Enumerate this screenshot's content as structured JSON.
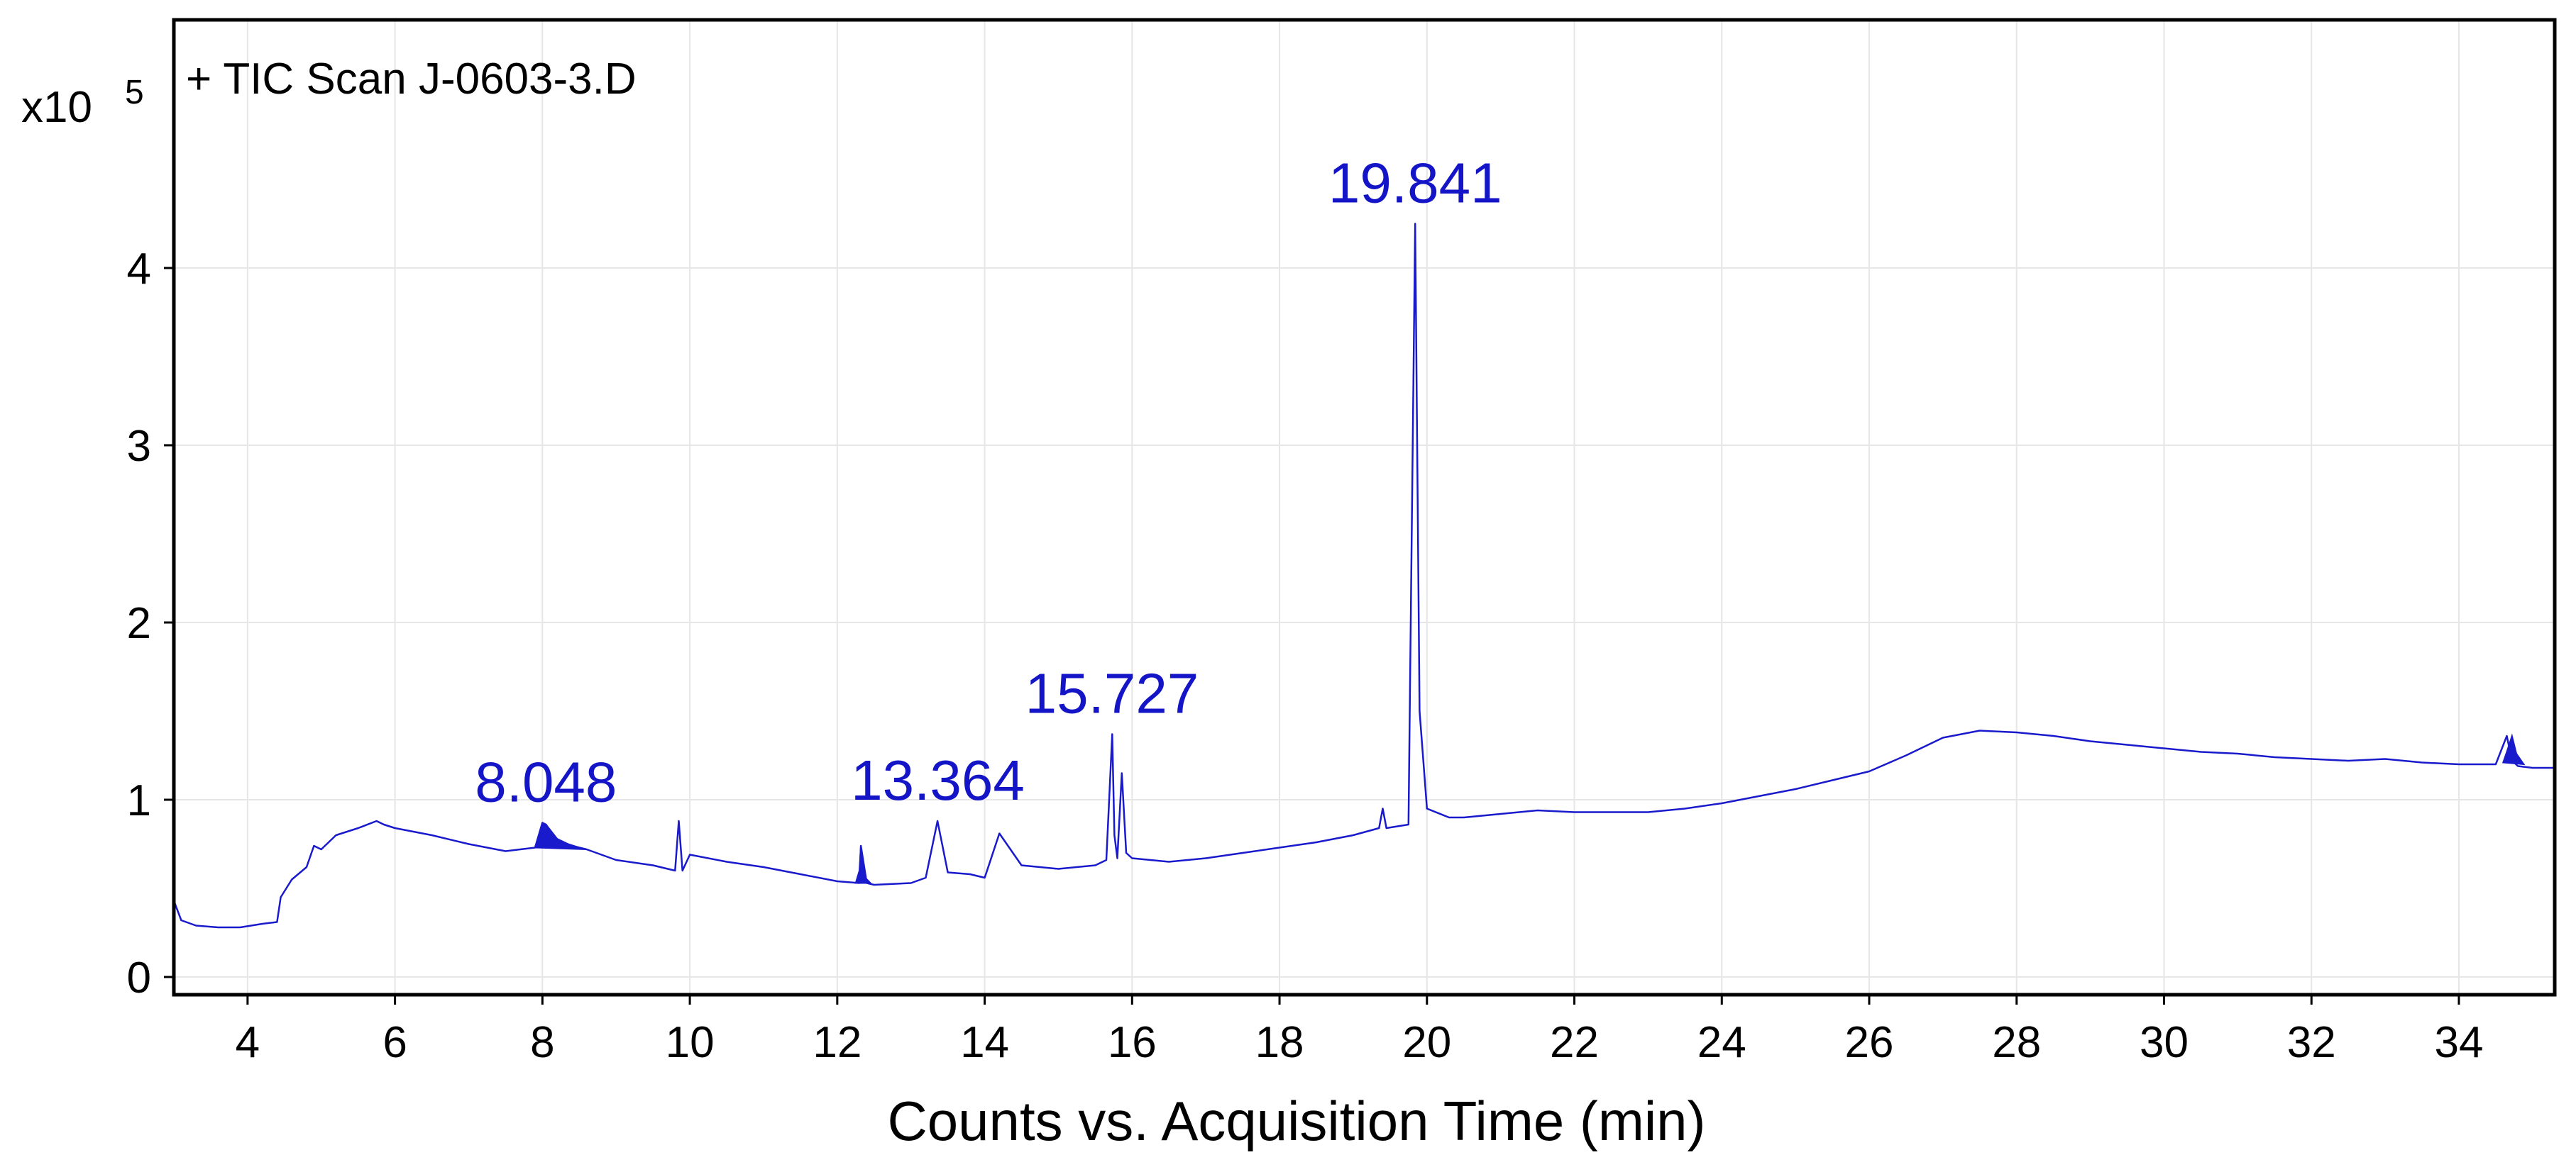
{
  "chart_data": {
    "type": "line",
    "title": "+ TIC Scan J-0603-3.D",
    "xlabel": "Counts vs. Acquisition Time (min)",
    "ylabel": "",
    "y_multiplier": {
      "base": "x10",
      "exponent": "5"
    },
    "xlim": [
      3.0,
      35.3
    ],
    "ylim": [
      -0.1,
      5.4
    ],
    "x_ticks": [
      4,
      6,
      8,
      10,
      12,
      14,
      16,
      18,
      20,
      22,
      24,
      26,
      28,
      30,
      32,
      34
    ],
    "y_ticks": [
      0,
      1,
      2,
      3,
      4
    ],
    "grid": true,
    "colors": {
      "trace": "#1a1acd",
      "label": "#1515c8",
      "grid": "#e6e6e6",
      "frame": "#000000"
    },
    "series": [
      {
        "x": [
          3.0,
          3.1,
          3.3,
          3.6,
          3.9,
          4.2,
          4.4,
          4.45,
          4.6,
          4.8,
          4.9,
          5.0,
          5.2,
          5.5,
          5.75,
          5.85,
          6.0,
          6.5,
          7.0,
          7.5,
          7.9,
          8.0,
          8.05,
          8.2,
          8.5,
          8.6,
          9.0,
          9.5,
          9.8,
          9.85,
          9.9,
          10.0,
          10.5,
          11.0,
          11.5,
          12.0,
          12.3,
          12.32,
          12.4,
          12.5,
          13.0,
          13.2,
          13.36,
          13.5,
          13.8,
          14.0,
          14.2,
          14.5,
          15.0,
          15.5,
          15.65,
          15.73,
          15.76,
          15.8,
          15.86,
          15.92,
          16.0,
          16.5,
          17.0,
          17.5,
          18.0,
          18.5,
          19.0,
          19.35,
          19.4,
          19.45,
          19.6,
          19.75,
          19.84,
          19.9,
          20.0,
          20.3,
          20.5,
          21.0,
          21.5,
          22.0,
          22.5,
          23.0,
          23.5,
          24.0,
          24.5,
          25.0,
          25.5,
          26.0,
          26.5,
          27.0,
          27.5,
          28.0,
          28.5,
          29.0,
          29.5,
          30.0,
          30.5,
          31.0,
          31.5,
          32.0,
          32.5,
          33.0,
          33.5,
          34.0,
          34.5,
          34.65,
          34.72,
          34.8,
          35.0,
          35.3
        ],
        "y": [
          0.43,
          0.32,
          0.29,
          0.28,
          0.28,
          0.3,
          0.31,
          0.45,
          0.55,
          0.62,
          0.74,
          0.72,
          0.8,
          0.84,
          0.88,
          0.86,
          0.84,
          0.8,
          0.75,
          0.71,
          0.73,
          0.87,
          0.86,
          0.76,
          0.73,
          0.72,
          0.66,
          0.63,
          0.6,
          0.88,
          0.6,
          0.69,
          0.65,
          0.62,
          0.58,
          0.54,
          0.53,
          0.74,
          0.53,
          0.52,
          0.53,
          0.56,
          0.88,
          0.59,
          0.58,
          0.56,
          0.81,
          0.63,
          0.61,
          0.63,
          0.66,
          1.37,
          0.8,
          0.67,
          1.15,
          0.7,
          0.67,
          0.65,
          0.67,
          0.7,
          0.73,
          0.76,
          0.8,
          0.84,
          0.95,
          0.84,
          0.85,
          0.86,
          4.25,
          1.5,
          0.95,
          0.9,
          0.9,
          0.92,
          0.94,
          0.93,
          0.93,
          0.93,
          0.95,
          0.98,
          1.02,
          1.06,
          1.11,
          1.16,
          1.25,
          1.35,
          1.39,
          1.38,
          1.36,
          1.33,
          1.31,
          1.29,
          1.27,
          1.26,
          1.24,
          1.23,
          1.22,
          1.23,
          1.21,
          1.2,
          1.2,
          1.36,
          1.22,
          1.19,
          1.18,
          1.18
        ]
      }
    ],
    "annotations": [
      {
        "label": "8.048",
        "x": 8.048,
        "y": 0.87
      },
      {
        "label": "13.364",
        "x": 13.364,
        "y": 0.88
      },
      {
        "label": "15.727",
        "x": 15.727,
        "y": 1.37
      },
      {
        "label": "19.841",
        "x": 19.841,
        "y": 4.25
      }
    ],
    "integrated_peaks": [
      {
        "x": [
          7.9,
          7.95,
          8.0,
          8.05,
          8.2,
          8.35,
          8.5,
          8.6
        ],
        "y": [
          0.73,
          0.8,
          0.87,
          0.86,
          0.78,
          0.75,
          0.73,
          0.72
        ]
      },
      {
        "x": [
          12.25,
          12.3,
          12.32,
          12.38,
          12.45
        ],
        "y": [
          0.53,
          0.6,
          0.74,
          0.56,
          0.53
        ]
      },
      {
        "x": [
          34.6,
          34.65,
          34.72,
          34.78,
          34.88
        ],
        "y": [
          1.21,
          1.27,
          1.36,
          1.26,
          1.2
        ]
      }
    ]
  }
}
